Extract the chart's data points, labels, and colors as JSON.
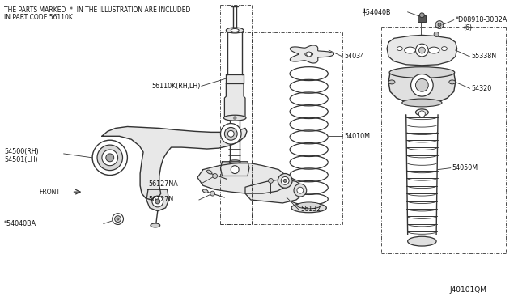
{
  "bg_color": "#ffffff",
  "line_color": "#333333",
  "text_color": "#111111",
  "header_text": [
    "THE PARTS MARKED  *  IN THE ILLUSTRATION ARE INCLUDED",
    "IN PART CODE 56110K"
  ],
  "footer_text": "J40101QM",
  "figsize": [
    6.4,
    3.72
  ],
  "dpi": 100
}
